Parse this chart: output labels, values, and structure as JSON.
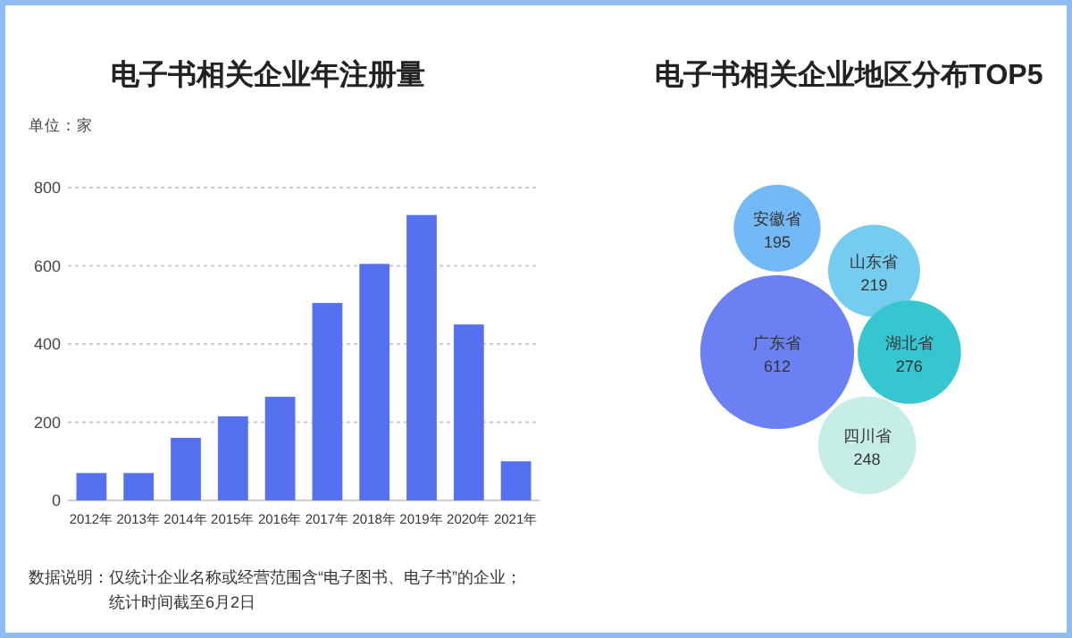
{
  "chart_data": [
    {
      "type": "bar",
      "title": "电子书相关企业年注册量",
      "annotations": [
        "单位：家",
        "数据说明：仅统计企业名称或经营范围含“电子图书、电子书”的企业；",
        "统计时间截至6月2日"
      ],
      "categories": [
        "2012年",
        "2013年",
        "2014年",
        "2015年",
        "2016年",
        "2017年",
        "2018年",
        "2019年",
        "2020年",
        "2021年"
      ],
      "values": [
        70,
        70,
        160,
        215,
        265,
        505,
        605,
        730,
        450,
        100
      ],
      "color": "#5571f0",
      "ylim": [
        0,
        800
      ],
      "yticks": [
        0,
        200,
        400,
        600,
        800
      ],
      "grid": "y"
    },
    {
      "type": "other",
      "title": "电子书相关企业地区分布TOP5",
      "categories": [
        "广东省",
        "安徽省",
        "山东省",
        "湖北省",
        "四川省"
      ],
      "values": [
        612,
        195,
        219,
        276,
        248
      ],
      "colors": [
        "#6b80f2",
        "#72b9f5",
        "#74cdef",
        "#36c6d0",
        "#c6eee6"
      ],
      "data_labels": true
    }
  ]
}
